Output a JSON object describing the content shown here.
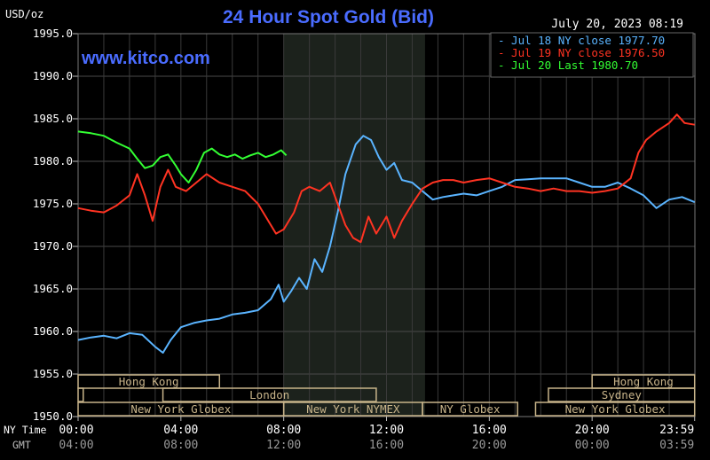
{
  "chart_data": {
    "type": "line",
    "title": "24 Hour Spot Gold (Bid)",
    "watermark": "www.kitco.com",
    "date": "July 20, 2023 08:19",
    "ylabel": "USD/oz",
    "ylim": [
      1950,
      1995
    ],
    "yticks": [
      "1995.0",
      "1990.0",
      "1985.0",
      "1980.0",
      "1975.0",
      "1970.0",
      "1965.0",
      "1960.0",
      "1955.0",
      "1950.0"
    ],
    "x_range_hours": [
      0,
      24
    ],
    "xticks_ny": [
      "00:00",
      "04:00",
      "08:00",
      "12:00",
      "16:00",
      "20:00",
      "23:59"
    ],
    "xticks_gmt": [
      "04:00",
      "08:00",
      "12:00",
      "16:00",
      "20:00",
      "00:00",
      "03:59"
    ],
    "x_row_labels": [
      "NY Time",
      "GMT"
    ],
    "grid": true,
    "legend_position": "top-right",
    "shaded_interval_hours": [
      8,
      13.5
    ],
    "colors": {
      "jul18": "#5ab4ff",
      "jul19": "#ff3322",
      "jul20": "#33ff33",
      "title": "#4a6cff",
      "session": "#c8b48a"
    },
    "series": [
      {
        "name": "Jul 18 NY close 1977.70",
        "color": "#5ab4ff",
        "points": [
          [
            0,
            1959.0
          ],
          [
            0.5,
            1959.3
          ],
          [
            1,
            1959.5
          ],
          [
            1.5,
            1959.2
          ],
          [
            2,
            1959.8
          ],
          [
            2.5,
            1959.6
          ],
          [
            3,
            1958.2
          ],
          [
            3.3,
            1957.5
          ],
          [
            3.6,
            1959.0
          ],
          [
            4,
            1960.5
          ],
          [
            4.5,
            1961.0
          ],
          [
            5,
            1961.3
          ],
          [
            5.5,
            1961.5
          ],
          [
            6,
            1962.0
          ],
          [
            6.5,
            1962.2
          ],
          [
            7,
            1962.5
          ],
          [
            7.5,
            1963.8
          ],
          [
            7.8,
            1965.5
          ],
          [
            8,
            1963.5
          ],
          [
            8.3,
            1964.8
          ],
          [
            8.6,
            1966.3
          ],
          [
            8.9,
            1965.0
          ],
          [
            9.2,
            1968.5
          ],
          [
            9.5,
            1967.0
          ],
          [
            9.8,
            1970.0
          ],
          [
            10.1,
            1974.0
          ],
          [
            10.4,
            1978.5
          ],
          [
            10.8,
            1982.0
          ],
          [
            11.1,
            1983.0
          ],
          [
            11.4,
            1982.5
          ],
          [
            11.7,
            1980.5
          ],
          [
            12,
            1979.0
          ],
          [
            12.3,
            1979.8
          ],
          [
            12.6,
            1977.8
          ],
          [
            13,
            1977.5
          ],
          [
            13.4,
            1976.5
          ],
          [
            13.8,
            1975.5
          ],
          [
            14.2,
            1975.8
          ],
          [
            14.6,
            1976.0
          ],
          [
            15,
            1976.2
          ],
          [
            15.5,
            1976.0
          ],
          [
            16,
            1976.5
          ],
          [
            16.5,
            1977.0
          ],
          [
            17,
            1977.8
          ],
          [
            17.5,
            1977.9
          ],
          [
            18,
            1978.0
          ],
          [
            18.5,
            1978.0
          ],
          [
            19,
            1978.0
          ],
          [
            19.5,
            1977.5
          ],
          [
            20,
            1977.0
          ],
          [
            20.5,
            1977.0
          ],
          [
            21,
            1977.5
          ],
          [
            21.5,
            1976.8
          ],
          [
            22,
            1976.0
          ],
          [
            22.5,
            1974.5
          ],
          [
            23,
            1975.5
          ],
          [
            23.5,
            1975.8
          ],
          [
            23.99,
            1975.2
          ]
        ]
      },
      {
        "name": "Jul 19 NY close 1976.50",
        "color": "#ff3322",
        "points": [
          [
            0,
            1974.5
          ],
          [
            0.5,
            1974.2
          ],
          [
            1,
            1974.0
          ],
          [
            1.5,
            1974.8
          ],
          [
            2,
            1976.0
          ],
          [
            2.3,
            1978.5
          ],
          [
            2.6,
            1976.0
          ],
          [
            2.9,
            1973.0
          ],
          [
            3.2,
            1977.0
          ],
          [
            3.5,
            1979.0
          ],
          [
            3.8,
            1977.0
          ],
          [
            4.2,
            1976.5
          ],
          [
            4.6,
            1977.5
          ],
          [
            5,
            1978.5
          ],
          [
            5.5,
            1977.5
          ],
          [
            6,
            1977.0
          ],
          [
            6.5,
            1976.5
          ],
          [
            7,
            1975.0
          ],
          [
            7.3,
            1973.5
          ],
          [
            7.7,
            1971.5
          ],
          [
            8,
            1972.0
          ],
          [
            8.4,
            1974.0
          ],
          [
            8.7,
            1976.5
          ],
          [
            9,
            1977.0
          ],
          [
            9.4,
            1976.5
          ],
          [
            9.8,
            1977.5
          ],
          [
            10.1,
            1975.0
          ],
          [
            10.4,
            1972.5
          ],
          [
            10.7,
            1971.0
          ],
          [
            11,
            1970.5
          ],
          [
            11.3,
            1973.5
          ],
          [
            11.6,
            1971.5
          ],
          [
            12,
            1973.5
          ],
          [
            12.3,
            1971.0
          ],
          [
            12.6,
            1973.0
          ],
          [
            13,
            1975.0
          ],
          [
            13.4,
            1976.8
          ],
          [
            13.8,
            1977.5
          ],
          [
            14.2,
            1977.8
          ],
          [
            14.6,
            1977.8
          ],
          [
            15,
            1977.5
          ],
          [
            15.5,
            1977.8
          ],
          [
            16,
            1978.0
          ],
          [
            16.5,
            1977.5
          ],
          [
            17,
            1977.0
          ],
          [
            17.5,
            1976.8
          ],
          [
            18,
            1976.5
          ],
          [
            18.5,
            1976.8
          ],
          [
            19,
            1976.5
          ],
          [
            19.5,
            1976.5
          ],
          [
            20,
            1976.3
          ],
          [
            20.5,
            1976.5
          ],
          [
            21,
            1976.8
          ],
          [
            21.5,
            1978.0
          ],
          [
            21.8,
            1981.0
          ],
          [
            22.1,
            1982.5
          ],
          [
            22.5,
            1983.5
          ],
          [
            23,
            1984.5
          ],
          [
            23.3,
            1985.5
          ],
          [
            23.6,
            1984.5
          ],
          [
            23.99,
            1984.3
          ]
        ]
      },
      {
        "name": "Jul 20 Last 1980.70",
        "color": "#33ff33",
        "points": [
          [
            0,
            1983.5
          ],
          [
            0.5,
            1983.3
          ],
          [
            1,
            1983.0
          ],
          [
            1.5,
            1982.2
          ],
          [
            2,
            1981.5
          ],
          [
            2.3,
            1980.3
          ],
          [
            2.6,
            1979.2
          ],
          [
            2.9,
            1979.5
          ],
          [
            3.2,
            1980.5
          ],
          [
            3.5,
            1980.8
          ],
          [
            3.8,
            1979.5
          ],
          [
            4,
            1978.5
          ],
          [
            4.3,
            1977.5
          ],
          [
            4.6,
            1979.0
          ],
          [
            4.9,
            1981.0
          ],
          [
            5.2,
            1981.5
          ],
          [
            5.5,
            1980.8
          ],
          [
            5.8,
            1980.5
          ],
          [
            6.1,
            1980.8
          ],
          [
            6.4,
            1980.3
          ],
          [
            6.7,
            1980.7
          ],
          [
            7,
            1981.0
          ],
          [
            7.3,
            1980.5
          ],
          [
            7.6,
            1980.8
          ],
          [
            7.9,
            1981.3
          ],
          [
            8.1,
            1980.7
          ]
        ]
      }
    ],
    "sessions": [
      {
        "name": "Hong Kong",
        "start": 0,
        "end": 5.5,
        "row": 0
      },
      {
        "name": "Hong Kong",
        "start": 20,
        "end": 23.99,
        "row": 0
      },
      {
        "name": "",
        "start": 0,
        "end": 0.2,
        "row": 1
      },
      {
        "name": "London",
        "start": 3.3,
        "end": 11.6,
        "row": 1
      },
      {
        "name": "Sydney",
        "start": 18.3,
        "end": 23.99,
        "row": 1
      },
      {
        "name": "New York Globex",
        "start": 0,
        "end": 8,
        "row": 2
      },
      {
        "name": "New York NYMEX",
        "start": 8,
        "end": 13.4,
        "row": 2
      },
      {
        "name": "NY Globex",
        "start": 13.4,
        "end": 17.1,
        "row": 2
      },
      {
        "name": "New York Globex",
        "start": 17.8,
        "end": 23.99,
        "row": 2
      }
    ]
  }
}
